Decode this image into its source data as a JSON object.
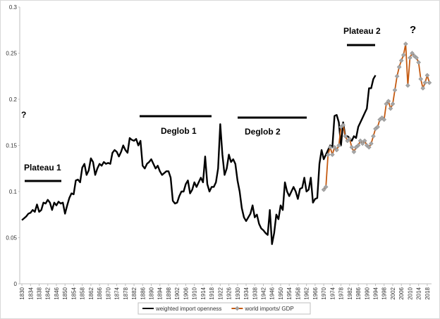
{
  "chart_data": {
    "type": "line",
    "x": [
      1830,
      1831,
      1832,
      1833,
      1834,
      1835,
      1836,
      1837,
      1838,
      1839,
      1840,
      1841,
      1842,
      1843,
      1844,
      1845,
      1846,
      1847,
      1848,
      1849,
      1850,
      1851,
      1852,
      1853,
      1854,
      1855,
      1856,
      1857,
      1858,
      1859,
      1860,
      1861,
      1862,
      1863,
      1864,
      1865,
      1866,
      1867,
      1868,
      1869,
      1870,
      1871,
      1872,
      1873,
      1874,
      1875,
      1876,
      1877,
      1878,
      1879,
      1880,
      1881,
      1882,
      1883,
      1884,
      1885,
      1886,
      1887,
      1888,
      1889,
      1890,
      1891,
      1892,
      1893,
      1894,
      1895,
      1896,
      1897,
      1898,
      1899,
      1900,
      1901,
      1902,
      1903,
      1904,
      1905,
      1906,
      1907,
      1908,
      1909,
      1910,
      1911,
      1912,
      1913,
      1914,
      1915,
      1916,
      1917,
      1918,
      1919,
      1920,
      1921,
      1922,
      1923,
      1924,
      1925,
      1926,
      1927,
      1928,
      1929,
      1930,
      1931,
      1932,
      1933,
      1934,
      1935,
      1936,
      1937,
      1938,
      1939,
      1940,
      1941,
      1942,
      1943,
      1944,
      1945,
      1946,
      1947,
      1948,
      1949,
      1950,
      1951,
      1952,
      1953,
      1954,
      1955,
      1956,
      1957,
      1958,
      1959,
      1960,
      1961,
      1962,
      1963,
      1964,
      1965,
      1966,
      1967,
      1968,
      1969,
      1970,
      1971,
      1972,
      1973,
      1974,
      1975,
      1976,
      1977,
      1978,
      1979,
      1980,
      1981,
      1982,
      1983,
      1984,
      1985,
      1986,
      1987,
      1988,
      1989,
      1990,
      1991,
      1992,
      1993,
      1994,
      1995,
      1996,
      1997,
      1998,
      1999,
      2000,
      2001,
      2002,
      2003,
      2004,
      2005,
      2006,
      2007,
      2008,
      2009,
      2010,
      2011,
      2012,
      2013,
      2014,
      2015,
      2016,
      2017,
      2018,
      2019
    ],
    "series": [
      {
        "name": "weighted import openness",
        "color": "#000000",
        "marker": null,
        "values": [
          0.069,
          0.071,
          0.073,
          0.076,
          0.077,
          0.08,
          0.078,
          0.086,
          0.078,
          0.08,
          0.088,
          0.087,
          0.091,
          0.088,
          0.08,
          0.088,
          0.085,
          0.089,
          0.087,
          0.088,
          0.076,
          0.085,
          0.093,
          0.098,
          0.097,
          0.112,
          0.113,
          0.11,
          0.126,
          0.13,
          0.118,
          0.123,
          0.136,
          0.132,
          0.118,
          0.125,
          0.13,
          0.128,
          0.132,
          0.13,
          0.131,
          0.13,
          0.142,
          0.145,
          0.143,
          0.138,
          0.143,
          0.15,
          0.145,
          0.142,
          0.158,
          0.156,
          0.155,
          0.157,
          0.15,
          0.155,
          0.128,
          0.125,
          0.13,
          0.132,
          0.135,
          0.13,
          0.125,
          0.128,
          0.122,
          0.118,
          0.12,
          0.122,
          0.122,
          0.115,
          0.09,
          0.087,
          0.088,
          0.095,
          0.1,
          0.1,
          0.108,
          0.112,
          0.098,
          0.102,
          0.11,
          0.105,
          0.11,
          0.115,
          0.11,
          0.138,
          0.108,
          0.1,
          0.105,
          0.105,
          0.11,
          0.125,
          0.173,
          0.14,
          0.118,
          0.125,
          0.14,
          0.132,
          0.135,
          0.13,
          0.112,
          0.1,
          0.082,
          0.072,
          0.068,
          0.072,
          0.076,
          0.085,
          0.072,
          0.075,
          0.065,
          0.06,
          0.058,
          0.055,
          0.053,
          0.08,
          0.043,
          0.055,
          0.075,
          0.07,
          0.085,
          0.08,
          0.11,
          0.1,
          0.095,
          0.1,
          0.105,
          0.1,
          0.092,
          0.103,
          0.104,
          0.115,
          0.1,
          0.102,
          0.115,
          0.088,
          0.092,
          0.093,
          0.13,
          0.145,
          0.135,
          0.14,
          0.145,
          0.15,
          0.148,
          0.182,
          0.183,
          0.175,
          0.15,
          0.175,
          0.16,
          0.16,
          0.158,
          0.155,
          0.16,
          0.158,
          0.17,
          0.175,
          0.18,
          0.185,
          0.19,
          0.212,
          0.212,
          0.222,
          0.226,
          null,
          null,
          null,
          null,
          null,
          null,
          null,
          null,
          null,
          null,
          null,
          null,
          null,
          null,
          null,
          null,
          null,
          null,
          null,
          null,
          null,
          null,
          null,
          null,
          null
        ]
      },
      {
        "name": "world imports/ GDP",
        "color": "#c55a11",
        "marker": "diamond",
        "marker_color": "#a6a6a6",
        "values": [
          null,
          null,
          null,
          null,
          null,
          null,
          null,
          null,
          null,
          null,
          null,
          null,
          null,
          null,
          null,
          null,
          null,
          null,
          null,
          null,
          null,
          null,
          null,
          null,
          null,
          null,
          null,
          null,
          null,
          null,
          null,
          null,
          null,
          null,
          null,
          null,
          null,
          null,
          null,
          null,
          null,
          null,
          null,
          null,
          null,
          null,
          null,
          null,
          null,
          null,
          null,
          null,
          null,
          null,
          null,
          null,
          null,
          null,
          null,
          null,
          null,
          null,
          null,
          null,
          null,
          null,
          null,
          null,
          null,
          null,
          null,
          null,
          null,
          null,
          null,
          null,
          null,
          null,
          null,
          null,
          null,
          null,
          null,
          null,
          null,
          null,
          null,
          null,
          null,
          null,
          null,
          null,
          null,
          null,
          null,
          null,
          null,
          null,
          null,
          null,
          null,
          null,
          null,
          null,
          null,
          null,
          null,
          null,
          null,
          null,
          null,
          null,
          null,
          null,
          null,
          null,
          null,
          null,
          null,
          null,
          null,
          null,
          null,
          null,
          null,
          null,
          null,
          null,
          null,
          null,
          null,
          null,
          null,
          null,
          null,
          null,
          null,
          null,
          null,
          null,
          0.102,
          0.105,
          0.14,
          0.148,
          0.14,
          0.148,
          0.145,
          0.15,
          0.17,
          0.172,
          0.16,
          0.155,
          0.157,
          0.148,
          0.143,
          0.148,
          0.15,
          0.155,
          0.152,
          0.155,
          0.15,
          0.148,
          0.152,
          0.16,
          0.168,
          0.17,
          0.178,
          0.18,
          0.178,
          0.195,
          0.198,
          0.19,
          0.195,
          0.21,
          0.225,
          0.235,
          0.242,
          0.248,
          0.26,
          0.215,
          0.245,
          0.25,
          0.247,
          0.245,
          0.24,
          0.222,
          0.212,
          0.218,
          0.226,
          0.218
        ]
      }
    ],
    "xlim": [
      1829,
      2020
    ],
    "xticks": [
      1830,
      1834,
      1838,
      1842,
      1846,
      1850,
      1854,
      1858,
      1862,
      1866,
      1870,
      1874,
      1878,
      1882,
      1886,
      1890,
      1894,
      1898,
      1902,
      1906,
      1910,
      1914,
      1918,
      1922,
      1926,
      1930,
      1934,
      1938,
      1942,
      1946,
      1950,
      1954,
      1958,
      1962,
      1966,
      1970,
      1974,
      1978,
      1982,
      1986,
      1990,
      1994,
      1998,
      2002,
      2006,
      2010,
      2014,
      2018
    ],
    "ylim": [
      0,
      0.3
    ],
    "yticks": [
      0,
      0.05,
      0.1,
      0.15,
      0.2,
      0.25,
      0.3
    ],
    "grid": false,
    "legend": "bottom",
    "annotations": [
      "?",
      "Plateau 1",
      "Deglob 1",
      "Deglob 2",
      "Plateau 2",
      "?"
    ]
  }
}
